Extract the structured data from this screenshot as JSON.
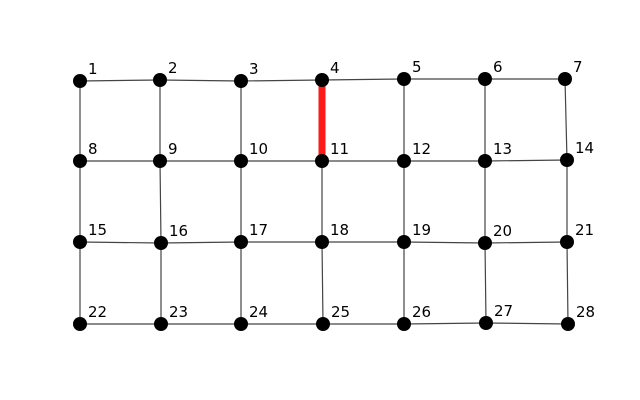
{
  "graph": {
    "node_color": "#000000",
    "edge_color": "#444444",
    "highlight_color": "#ff1a1a",
    "rows": 4,
    "cols": 7,
    "nodes": [
      {
        "id": 1,
        "label": "1"
      },
      {
        "id": 2,
        "label": "2"
      },
      {
        "id": 3,
        "label": "3"
      },
      {
        "id": 4,
        "label": "4"
      },
      {
        "id": 5,
        "label": "5"
      },
      {
        "id": 6,
        "label": "6"
      },
      {
        "id": 7,
        "label": "7"
      },
      {
        "id": 8,
        "label": "8"
      },
      {
        "id": 9,
        "label": "9"
      },
      {
        "id": 10,
        "label": "10"
      },
      {
        "id": 11,
        "label": "11"
      },
      {
        "id": 12,
        "label": "12"
      },
      {
        "id": 13,
        "label": "13"
      },
      {
        "id": 14,
        "label": "14"
      },
      {
        "id": 15,
        "label": "15"
      },
      {
        "id": 16,
        "label": "16"
      },
      {
        "id": 17,
        "label": "17"
      },
      {
        "id": 18,
        "label": "18"
      },
      {
        "id": 19,
        "label": "19"
      },
      {
        "id": 20,
        "label": "20"
      },
      {
        "id": 21,
        "label": "21"
      },
      {
        "id": 22,
        "label": "22"
      },
      {
        "id": 23,
        "label": "23"
      },
      {
        "id": 24,
        "label": "24"
      },
      {
        "id": 25,
        "label": "25"
      },
      {
        "id": 26,
        "label": "26"
      },
      {
        "id": 27,
        "label": "27"
      },
      {
        "id": 28,
        "label": "28"
      }
    ],
    "edges": [
      [
        1,
        2
      ],
      [
        2,
        3
      ],
      [
        3,
        4
      ],
      [
        4,
        5
      ],
      [
        5,
        6
      ],
      [
        6,
        7
      ],
      [
        8,
        9
      ],
      [
        9,
        10
      ],
      [
        10,
        11
      ],
      [
        11,
        12
      ],
      [
        12,
        13
      ],
      [
        13,
        14
      ],
      [
        15,
        16
      ],
      [
        16,
        17
      ],
      [
        17,
        18
      ],
      [
        18,
        19
      ],
      [
        19,
        20
      ],
      [
        20,
        21
      ],
      [
        22,
        23
      ],
      [
        23,
        24
      ],
      [
        24,
        25
      ],
      [
        25,
        26
      ],
      [
        26,
        27
      ],
      [
        27,
        28
      ],
      [
        1,
        8
      ],
      [
        8,
        15
      ],
      [
        15,
        22
      ],
      [
        2,
        9
      ],
      [
        9,
        16
      ],
      [
        16,
        23
      ],
      [
        3,
        10
      ],
      [
        10,
        17
      ],
      [
        17,
        24
      ],
      [
        4,
        11
      ],
      [
        11,
        18
      ],
      [
        18,
        25
      ],
      [
        5,
        12
      ],
      [
        12,
        19
      ],
      [
        19,
        26
      ],
      [
        6,
        13
      ],
      [
        13,
        20
      ],
      [
        20,
        27
      ],
      [
        7,
        14
      ],
      [
        14,
        21
      ],
      [
        21,
        28
      ]
    ],
    "highlighted_edges": [
      [
        4,
        11
      ]
    ]
  }
}
